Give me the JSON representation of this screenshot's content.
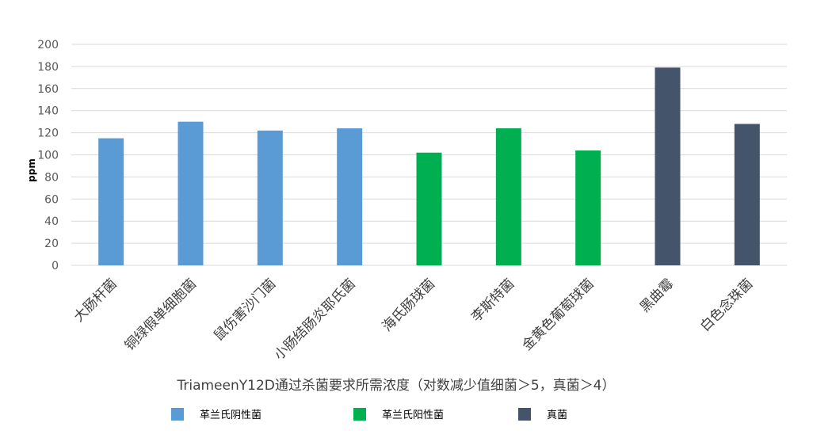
{
  "chart_data": {
    "type": "bar",
    "title": "",
    "xlabel": "TriameenY12D通过杀菌要求所需浓度（对数减少值细菌＞5，真菌＞4）",
    "ylabel": "ppm",
    "ylim": [
      0,
      200
    ],
    "yticks": [
      0,
      20,
      40,
      60,
      80,
      100,
      120,
      140,
      160,
      180,
      200
    ],
    "grid": true,
    "legend_position": "bottom",
    "categories": [
      "大肠杆菌",
      "铜绿假单细胞菌",
      "鼠伤害沙门菌",
      "小肠结肠炎耶氏菌",
      "海氏肠球菌",
      "李斯特菌",
      "金黄色葡萄球菌",
      "黑曲霉",
      "白色念珠菌"
    ],
    "values": [
      115,
      130,
      122,
      124,
      102,
      124,
      104,
      179,
      128
    ],
    "groups": [
      0,
      0,
      0,
      0,
      1,
      1,
      1,
      2,
      2
    ],
    "series": [
      {
        "name": "革兰氏阴性菌",
        "color": "#5B9BD5"
      },
      {
        "name": "革兰氏阳性菌",
        "color": "#00B050"
      },
      {
        "name": "真菌",
        "color": "#44546A"
      }
    ]
  }
}
